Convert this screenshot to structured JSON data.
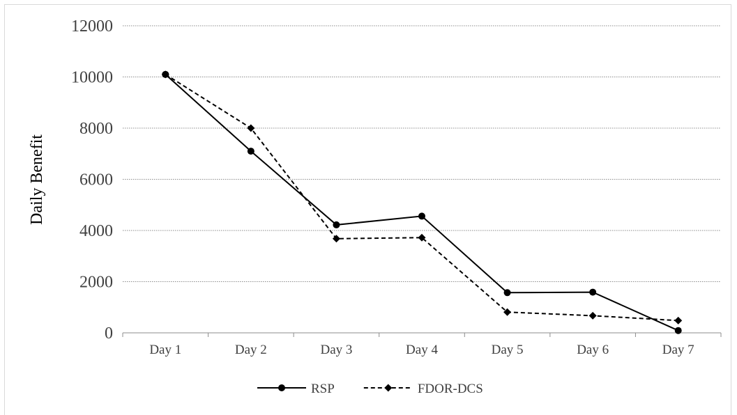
{
  "chart_data": {
    "type": "line",
    "title": "",
    "xlabel": "",
    "ylabel": "Daily Benefit",
    "categories": [
      "Day 1",
      "Day 2",
      "Day 3",
      "Day 4",
      "Day 5",
      "Day 6",
      "Day 7"
    ],
    "ylim": [
      0,
      12000
    ],
    "yticks": [
      "0",
      "2000",
      "4000",
      "6000",
      "8000",
      "10000",
      "12000"
    ],
    "grid": true,
    "legend_position": "bottom",
    "series": [
      {
        "name": "RSP",
        "values": [
          10100,
          7100,
          4220,
          4560,
          1570,
          1590,
          90
        ],
        "line_style": "solid",
        "marker": "circle",
        "color": "#000000"
      },
      {
        "name": "FDOR-DCS",
        "values": [
          10100,
          8000,
          3680,
          3720,
          810,
          670,
          480
        ],
        "line_style": "dashed",
        "marker": "diamond",
        "color": "#000000"
      }
    ]
  }
}
